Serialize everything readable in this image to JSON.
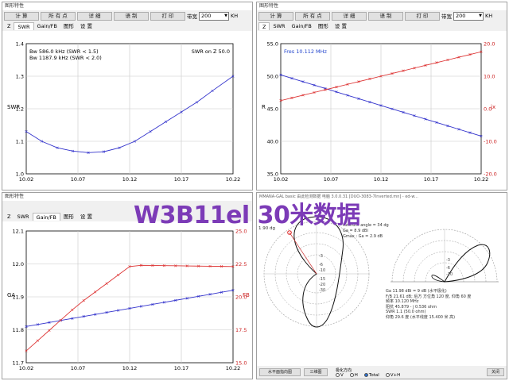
{
  "win1": {
    "title": "图形特性",
    "toolbar": {
      "calc": "计 算",
      "allpts": "所 有 点",
      "detail": "详 细",
      "copy": "语 制",
      "print": "打 印",
      "bw_label": "带宽",
      "bw_value": "200",
      "unit": "KH"
    },
    "tabs": [
      "Z",
      "SWR",
      "Gain/FB",
      "图形",
      "设 置"
    ],
    "active_tab": 1,
    "ylabel": "SWR",
    "ann1": "Bw 586.0 kHz (SWR < 1.5)",
    "ann2": "Bw 1187.9 kHz (SWR < 2.0)",
    "ann3": "SWR on Z  50.0"
  },
  "win2": {
    "title": "图形特性",
    "toolbar": {
      "calc": "计 算",
      "allpts": "所 有 点",
      "detail": "详 细",
      "copy": "语 制",
      "print": "打 印",
      "bw_label": "带宽",
      "bw_value": "200",
      "unit": "KH"
    },
    "tabs": [
      "Z",
      "SWR",
      "Gain/FB",
      "图形",
      "设 置"
    ],
    "active_tab": 0,
    "ylabel_left": "R",
    "ylabel_right": "jx",
    "ann": "Fres  10.112 MHz"
  },
  "win3": {
    "title": "图形特性",
    "tabs": [
      "Z",
      "SWR",
      "Gain/FB",
      "图形",
      "设 置"
    ],
    "active_tab": 2,
    "ylabel_left": "GA",
    "ylabel_right": "FB"
  },
  "win4": {
    "title": "MMANA-GAL basic 由此检测数据 电脑 3.0.0.31 [DUO-3083-7Inverted.mn] - ed-w...",
    "top_left": "1.90 dg",
    "ann1": "Azimuth angle = 34 dg",
    "ann2": "Ga = 8.9 dBi",
    "ann3": "Gmax : Ga = 2.9 dB",
    "info": [
      "Ga  11.98 dBi = 9 dB (水平极化)",
      "F/B  21.61 dB; 后方 方位角 120 度, 仰角 60 度",
      "频率  10.120 MHz",
      "阻抗  45.879 - j 0.536 ohm",
      "SWR  1.1 (50.0 ohm)",
      "仰角  29.6 度 (水平线度  15.400 米 高)"
    ],
    "ring_labels": [
      "-3",
      "-6",
      "-10",
      "-15",
      "-20",
      "-30"
    ],
    "btn1": "水平面指向图",
    "btn2": "三维图",
    "btn_close": "关闭",
    "radio_group": "极化方向",
    "radios": [
      "V",
      "H",
      "Total",
      "V+H"
    ],
    "radio_on": 2
  },
  "watermark": "W3B11el 30米数据",
  "chart_data": [
    {
      "type": "line",
      "x": [
        10.02,
        10.035,
        10.05,
        10.065,
        10.08,
        10.095,
        10.11,
        10.125,
        10.14,
        10.155,
        10.17,
        10.185,
        10.2,
        10.22
      ],
      "series": [
        {
          "values": [
            1.13,
            1.1,
            1.08,
            1.07,
            1.065,
            1.068,
            1.08,
            1.1,
            1.13,
            1.16,
            1.19,
            1.22,
            1.255,
            1.3
          ]
        }
      ],
      "xticks": [
        "10.02",
        "10.07",
        "10.12",
        "10.17",
        "10.22"
      ],
      "yticks": [
        "1.4",
        "1.3",
        "1.2",
        "1.1",
        "1.0"
      ],
      "xlim": [
        10.02,
        10.22
      ],
      "ylim": [
        1.0,
        1.4
      ],
      "ylabel": "SWR",
      "color": "#3333cc"
    },
    {
      "type": "line",
      "x": [
        10.02,
        10.22
      ],
      "series": [
        {
          "values": [
            50.2,
            40.8
          ],
          "color": "#3333cc"
        },
        {
          "values": [
            2.5,
            17.5
          ],
          "color": "#dd3333"
        }
      ],
      "xticks": [
        "10.02",
        "10.07",
        "10.12",
        "10.17",
        "10.22"
      ],
      "yticks_left": [
        "55.0",
        "50.0",
        "45.0",
        "40.0",
        "35.0"
      ],
      "yticks_right": [
        "20.0",
        "10.0",
        "0.0",
        "-10.0",
        "-20.0"
      ],
      "xlim": [
        10.02,
        10.22
      ],
      "ylim_left": [
        35,
        55
      ],
      "ylim_right": [
        -20,
        20
      ],
      "ylabel_left": "R",
      "ylabel_right": "jx"
    },
    {
      "type": "line",
      "x": [
        10.02,
        10.22
      ],
      "series": [
        {
          "values": [
            11.81,
            11.92
          ],
          "color": "#3333cc",
          "axis": "left"
        },
        {
          "x": [
            10.02,
            10.07,
            10.12,
            10.125,
            10.22
          ],
          "values": [
            15.9,
            19.4,
            22.3,
            22.4,
            22.3
          ],
          "color": "#dd3333",
          "axis": "right"
        }
      ],
      "xticks": [
        "10.02",
        "10.07",
        "10.12",
        "10.17",
        "10.22"
      ],
      "yticks_left": [
        "12.1",
        "12.0",
        "11.9",
        "11.8",
        "11.7"
      ],
      "yticks_right": [
        "25.0",
        "22.5",
        "20.0",
        "17.5",
        "15.0"
      ],
      "xlim": [
        10.02,
        10.22
      ],
      "ylim_left": [
        11.7,
        12.1
      ],
      "ylim_right": [
        15,
        25
      ],
      "ylabel_left": "GA",
      "ylabel_right": "FB"
    }
  ]
}
